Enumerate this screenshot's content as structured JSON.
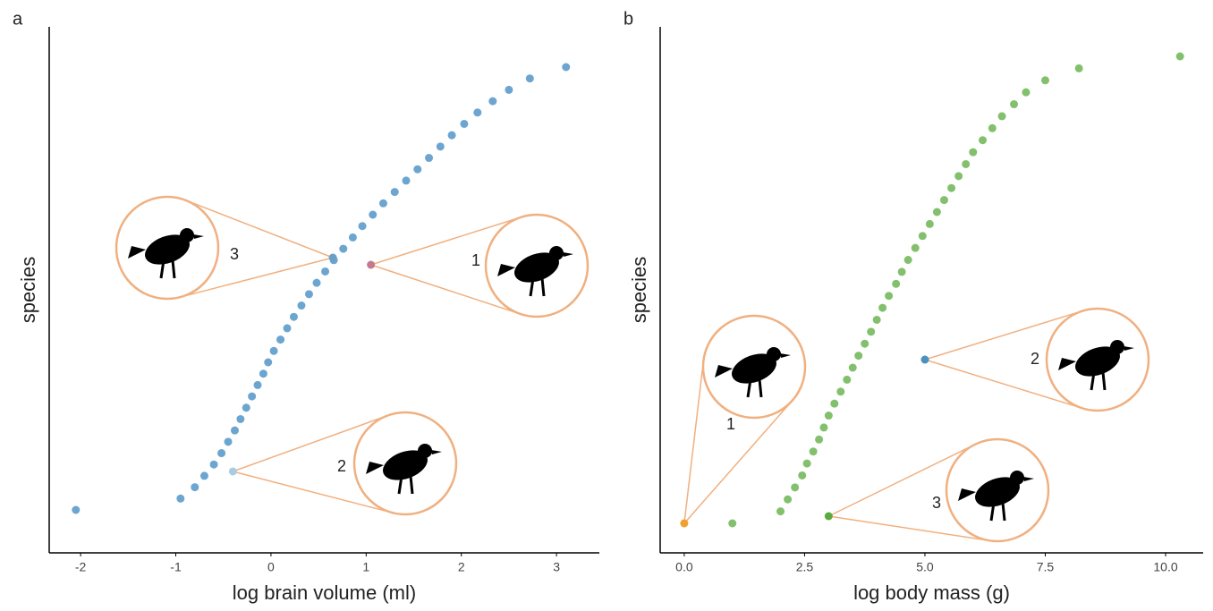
{
  "chart_data": [
    {
      "type": "rank-scatter",
      "title": "a",
      "x_label": "log brain volume (ml)",
      "y_label": "species",
      "color": "#3b87bf",
      "values": [
        -2.05,
        -0.95,
        -0.8,
        -0.7,
        -0.6,
        -0.52,
        -0.45,
        -0.38,
        -0.32,
        -0.26,
        -0.2,
        -0.14,
        -0.08,
        -0.03,
        0.03,
        0.1,
        0.17,
        0.24,
        0.32,
        0.4,
        0.48,
        0.57,
        0.66,
        0.76,
        0.86,
        0.96,
        1.07,
        1.18,
        1.3,
        1.42,
        1.54,
        1.66,
        1.78,
        1.9,
        2.03,
        2.17,
        2.33,
        2.5,
        2.72,
        3.1
      ],
      "xlim": [
        -2.33,
        3.45
      ],
      "xticks": [
        -2,
        -1,
        0,
        1,
        2,
        3
      ],
      "annotations": [
        {
          "label": "1",
          "x": 1.05,
          "color": "#c47a8e"
        },
        {
          "label": "2",
          "x": -0.4,
          "color": "#a9cbe3"
        },
        {
          "label": "3",
          "x": 0.65,
          "color": "#6aa0c8"
        }
      ]
    },
    {
      "type": "rank-scatter",
      "title": "b",
      "x_label": "log body mass (g)",
      "y_label": "species",
      "color": "#5aab3c",
      "values": [
        1.0,
        2.0,
        2.15,
        2.3,
        2.45,
        2.55,
        2.68,
        2.8,
        2.9,
        3.0,
        3.12,
        3.25,
        3.38,
        3.5,
        3.62,
        3.75,
        3.88,
        4.0,
        4.12,
        4.25,
        4.4,
        4.52,
        4.65,
        4.8,
        4.95,
        5.1,
        5.25,
        5.4,
        5.55,
        5.7,
        5.85,
        6.0,
        6.2,
        6.4,
        6.6,
        6.85,
        7.1,
        7.5,
        8.2,
        10.3
      ],
      "xlim": [
        -0.5,
        10.78
      ],
      "xticks": [
        {
          "value": 0,
          "label": "0.0"
        },
        2.5,
        {
          "value": 5,
          "label": "5.0"
        },
        7.5,
        {
          "value": 10,
          "label": "10.0"
        }
      ],
      "annotations": [
        {
          "label": "1",
          "x": 0,
          "color": "#f0a030"
        },
        {
          "label": "2",
          "x": 5,
          "color": "#4a90c0"
        },
        {
          "label": "3",
          "x": 3,
          "color": "#5aab3c"
        }
      ]
    }
  ]
}
